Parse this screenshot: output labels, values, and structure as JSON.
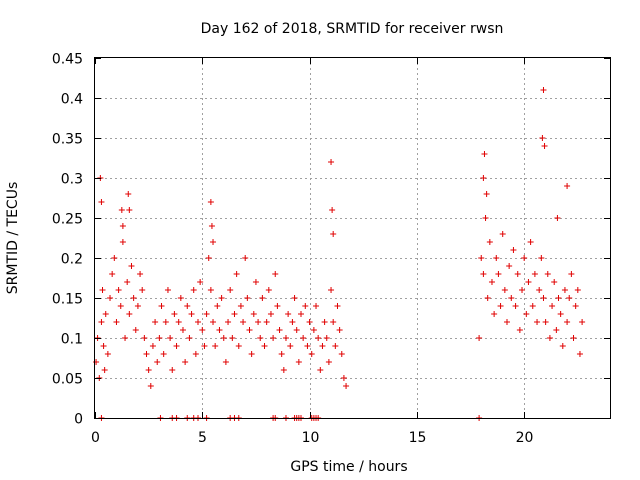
{
  "chart_data": {
    "type": "scatter",
    "title": "Day 162 of 2018, SRMTID for receiver rwsn",
    "xlabel": "GPS time / hours",
    "ylabel": "SRMTID / TECUs",
    "xlim": [
      0,
      24
    ],
    "ylim": [
      0,
      0.45
    ],
    "xticks": [
      0,
      5,
      10,
      15,
      20
    ],
    "xtick_labels": [
      "0",
      "5",
      "10",
      "15",
      "20"
    ],
    "yticks": [
      0,
      0.05,
      0.1,
      0.15,
      0.2,
      0.25,
      0.3,
      0.35,
      0.4,
      0.45
    ],
    "ytick_labels": [
      "0",
      "0.05",
      "0.1",
      "0.15",
      "0.2",
      "0.25",
      "0.3",
      "0.35",
      "0.4",
      "0.45"
    ],
    "grid": true,
    "marker": "+",
    "color": "#e00000",
    "series": [
      {
        "name": "SRMTID",
        "x": [
          0.05,
          0.12,
          0.2,
          0.3,
          0.35,
          0.4,
          0.45,
          0.5,
          0.6,
          0.7,
          0.8,
          0.9,
          1.0,
          1.1,
          1.2,
          1.3,
          1.4,
          1.5,
          1.6,
          1.7,
          1.8,
          1.9,
          2.0,
          2.1,
          2.2,
          2.3,
          2.4,
          2.5,
          2.6,
          2.7,
          2.8,
          2.9,
          3.0,
          3.1,
          3.2,
          3.3,
          3.4,
          3.5,
          3.6,
          3.7,
          3.8,
          3.9,
          4.0,
          4.1,
          4.2,
          4.3,
          4.4,
          4.5,
          4.6,
          4.7,
          4.8,
          4.9,
          5.0,
          5.1,
          5.2,
          5.3,
          5.4,
          5.5,
          5.6,
          5.7,
          5.8,
          5.9,
          6.0,
          6.1,
          6.2,
          6.3,
          6.4,
          6.5,
          6.6,
          6.7,
          6.8,
          6.9,
          7.0,
          7.1,
          7.2,
          7.3,
          7.4,
          7.5,
          7.6,
          7.7,
          7.8,
          7.9,
          8.0,
          8.1,
          8.2,
          8.3,
          8.4,
          8.5,
          8.6,
          8.7,
          8.8,
          8.9,
          9.0,
          9.1,
          9.2,
          9.3,
          9.4,
          9.5,
          9.6,
          9.7,
          9.8,
          9.9,
          10.0,
          10.1,
          10.2,
          10.3,
          10.4,
          10.5,
          10.6,
          10.7,
          10.8,
          10.9,
          11.0,
          11.1,
          11.2,
          11.3,
          11.4,
          11.5,
          11.6,
          11.7,
          0.25,
          0.3,
          1.25,
          1.3,
          1.55,
          1.6,
          5.4,
          5.45,
          5.5,
          11.0,
          11.05,
          11.1,
          17.9,
          18.0,
          18.1,
          18.2,
          18.3,
          18.4,
          18.5,
          18.6,
          18.7,
          18.8,
          18.9,
          19.0,
          19.1,
          19.2,
          19.3,
          19.4,
          19.5,
          19.6,
          19.7,
          19.8,
          19.9,
          20.0,
          20.1,
          20.2,
          20.3,
          20.4,
          20.5,
          20.6,
          20.7,
          20.8,
          20.9,
          21.0,
          21.1,
          21.2,
          21.3,
          21.4,
          21.5,
          21.6,
          21.7,
          21.8,
          21.9,
          22.0,
          22.1,
          22.2,
          22.3,
          22.4,
          22.5,
          22.6,
          22.7,
          18.1,
          18.15,
          18.25,
          20.85,
          20.9,
          20.95,
          21.55,
          22.0
        ],
        "y": [
          0.07,
          0.1,
          0.05,
          0.12,
          0.16,
          0.09,
          0.06,
          0.13,
          0.08,
          0.15,
          0.18,
          0.2,
          0.12,
          0.16,
          0.14,
          0.22,
          0.1,
          0.17,
          0.13,
          0.19,
          0.15,
          0.11,
          0.14,
          0.18,
          0.16,
          0.1,
          0.08,
          0.06,
          0.04,
          0.09,
          0.12,
          0.07,
          0.1,
          0.14,
          0.08,
          0.12,
          0.16,
          0.1,
          0.06,
          0.13,
          0.09,
          0.12,
          0.15,
          0.11,
          0.07,
          0.14,
          0.1,
          0.13,
          0.16,
          0.08,
          0.12,
          0.17,
          0.11,
          0.09,
          0.13,
          0.2,
          0.16,
          0.12,
          0.09,
          0.14,
          0.11,
          0.15,
          0.1,
          0.07,
          0.12,
          0.16,
          0.1,
          0.13,
          0.18,
          0.09,
          0.14,
          0.12,
          0.2,
          0.15,
          0.11,
          0.08,
          0.13,
          0.17,
          0.12,
          0.1,
          0.15,
          0.09,
          0.12,
          0.16,
          0.13,
          0.1,
          0.18,
          0.14,
          0.11,
          0.08,
          0.06,
          0.1,
          0.13,
          0.09,
          0.12,
          0.15,
          0.11,
          0.07,
          0.13,
          0.1,
          0.14,
          0.09,
          0.12,
          0.08,
          0.11,
          0.14,
          0.1,
          0.06,
          0.09,
          0.12,
          0.1,
          0.07,
          0.16,
          0.12,
          0.09,
          0.14,
          0.11,
          0.08,
          0.05,
          0.04,
          0.3,
          0.27,
          0.26,
          0.24,
          0.28,
          0.26,
          0.27,
          0.24,
          0.22,
          0.32,
          0.26,
          0.23,
          0.1,
          0.2,
          0.18,
          0.25,
          0.15,
          0.22,
          0.17,
          0.13,
          0.2,
          0.18,
          0.14,
          0.23,
          0.16,
          0.12,
          0.19,
          0.15,
          0.21,
          0.14,
          0.18,
          0.11,
          0.16,
          0.2,
          0.13,
          0.17,
          0.22,
          0.14,
          0.18,
          0.12,
          0.16,
          0.2,
          0.15,
          0.12,
          0.18,
          0.1,
          0.14,
          0.17,
          0.11,
          0.15,
          0.13,
          0.09,
          0.16,
          0.12,
          0.15,
          0.18,
          0.1,
          0.14,
          0.16,
          0.08,
          0.12,
          0.3,
          0.33,
          0.28,
          0.35,
          0.41,
          0.34,
          0.25,
          0.29
        ],
        "zero_markers_x": [
          0.3,
          3.05,
          3.6,
          3.8,
          4.3,
          4.6,
          4.8,
          5.2,
          6.3,
          6.5,
          6.7,
          8.3,
          8.4,
          8.9,
          9.3,
          9.4,
          9.5,
          9.6,
          10.1,
          10.2,
          10.3,
          10.4,
          17.9
        ]
      }
    ]
  }
}
